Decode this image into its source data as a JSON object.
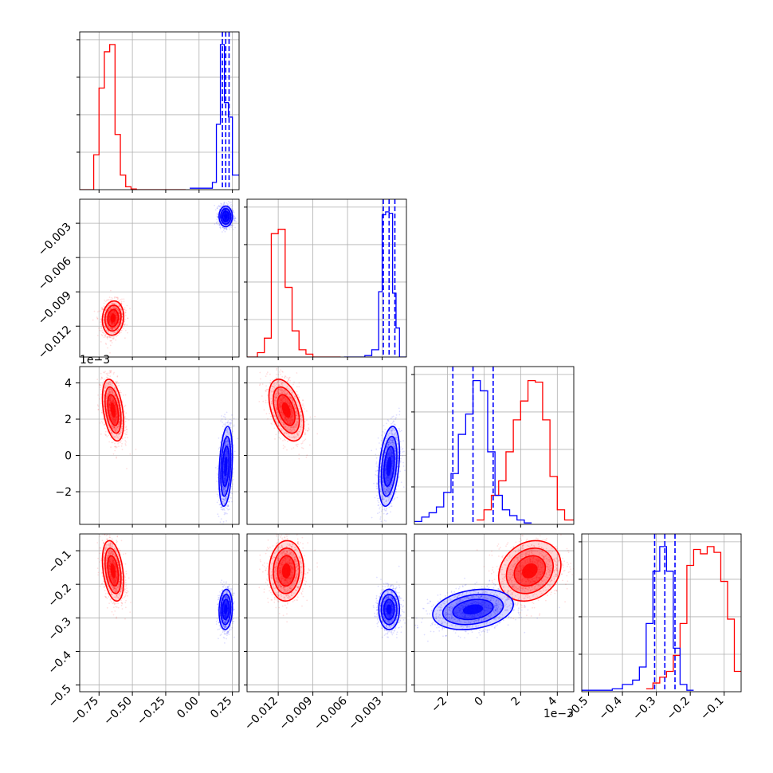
{
  "colors": {
    "red": "#ff0000",
    "blue": "#0000ff",
    "grid": "#b0b0b0",
    "axes": "#000000"
  },
  "chart_data": {
    "type": "corner-plot",
    "grid": true,
    "series": [
      {
        "color": "red",
        "params": {
          "p1": {
            "mean": -0.645,
            "std": 0.04
          },
          "p2": {
            "mean": -0.0113,
            "std": 0.00075
          },
          "p3": {
            "mean": 0.0025,
            "std": 0.00085
          },
          "p4": {
            "mean": -0.16,
            "std": 0.045
          }
        },
        "hist": {
          "p1": {
            "edges": [
              -0.895,
              -0.83,
              -0.79,
              -0.75,
              -0.71,
              -0.67,
              -0.63,
              -0.59,
              -0.55,
              -0.51,
              -0.47,
              -0.43,
              -0.39,
              -0.1
            ],
            "counts": [
              0,
              0,
              0.24,
              0.7,
              0.95,
              1.0,
              0.38,
              0.1,
              0.02,
              0.005,
              0,
              0,
              0
            ]
          },
          "p2": {
            "edges": [
              -0.0147,
              -0.0138,
              -0.0132,
              -0.0126,
              -0.012,
              -0.0114,
              -0.0108,
              -0.0102,
              -0.0096,
              -0.009,
              -0.0084,
              -0.0078,
              -0.0072,
              -0.0066
            ],
            "counts": [
              0,
              0.03,
              0.13,
              0.85,
              0.88,
              0.48,
              0.18,
              0.05,
              0.02,
              0,
              0,
              0,
              0
            ]
          },
          "p3": {
            "edges": [
              -0.0004,
              0.0,
              0.0004,
              0.0008,
              0.0012,
              0.0016,
              0.002,
              0.0024,
              0.0028,
              0.0032,
              0.0036,
              0.004,
              0.0044,
              0.005
            ],
            "counts": [
              0.03,
              0.1,
              0.2,
              0.3,
              0.5,
              0.72,
              0.85,
              0.99,
              0.98,
              0.72,
              0.33,
              0.1,
              0.03
            ]
          },
          "p4": {
            "edges": [
              -0.33,
              -0.31,
              -0.29,
              -0.27,
              -0.25,
              -0.23,
              -0.21,
              -0.19,
              -0.17,
              -0.15,
              -0.13,
              -0.11,
              -0.09,
              -0.07,
              -0.05
            ],
            "counts": [
              0.02,
              0.06,
              0.1,
              0.14,
              0.25,
              0.47,
              0.87,
              0.98,
              0.95,
              1.0,
              0.96,
              0.76,
              0.5,
              0.14
            ]
          }
        }
      },
      {
        "color": "blue",
        "params": {
          "p1": {
            "mean": 0.2,
            "std": 0.025
          },
          "p2": {
            "mean": -0.0024,
            "std": 0.00045
          },
          "p3": {
            "mean": -0.0006,
            "std": 0.0011
          },
          "p4": {
            "mean": -0.275,
            "std": 0.03
          }
        },
        "hist": {
          "p1": {
            "edges": [
              -0.07,
              0.1,
              0.13,
              0.16,
              0.19,
              0.22,
              0.25,
              0.28,
              0.3
            ],
            "counts": [
              0.01,
              0.05,
              0.45,
              1.0,
              0.6,
              0.5,
              0.1,
              0.1
            ]
          },
          "p2": {
            "edges": [
              -0.0063,
              -0.0045,
              -0.0039,
              -0.0033,
              -0.003,
              -0.0027,
              -0.0024,
              -0.0021,
              -0.0018,
              -0.0015,
              -0.0012,
              -0.0009
            ],
            "counts": [
              0,
              0.01,
              0.05,
              0.45,
              0.98,
              1.0,
              0.99,
              0.44,
              0.2,
              0,
              0
            ]
          },
          "p3": {
            "edges": [
              -0.0038,
              -0.0034,
              -0.003,
              -0.0026,
              -0.0022,
              -0.0018,
              -0.0014,
              -0.001,
              -0.0006,
              -0.0002,
              0.0002,
              0.0006,
              0.001,
              0.0014,
              0.0018,
              0.0022,
              0.0026
            ],
            "counts": [
              0.02,
              0.05,
              0.08,
              0.12,
              0.22,
              0.35,
              0.62,
              0.76,
              0.99,
              0.92,
              0.5,
              0.2,
              0.1,
              0.06,
              0.03,
              0.01
            ]
          },
          "p4": {
            "edges": [
              -0.52,
              -0.47,
              -0.43,
              -0.4,
              -0.37,
              -0.35,
              -0.33,
              -0.31,
              -0.29,
              -0.27,
              -0.25,
              -0.23,
              -0.21,
              -0.19
            ],
            "counts": [
              0.01,
              0.01,
              0.02,
              0.05,
              0.08,
              0.17,
              0.47,
              0.83,
              1.0,
              0.83,
              0.3,
              0.05,
              0.01
            ]
          },
          "quantile_lines": {
            "p1": [
              0.175,
              0.2,
              0.225
            ],
            "p2": [
              -0.0029,
              -0.0024,
              -0.0019
            ],
            "p3": [
              -0.0017,
              -0.0006,
              0.0005
            ],
            "p4": [
              -0.305,
              -0.275,
              -0.245
            ]
          }
        }
      }
    ],
    "axes": {
      "p1": {
        "range": [
          -0.895,
          0.3
        ],
        "ticks": [
          -0.75,
          -0.5,
          -0.25,
          0.0,
          0.25
        ],
        "tick_labels": [
          "−0.75",
          "−0.50",
          "−0.25",
          "0.00",
          "0.25"
        ]
      },
      "p2": {
        "range": [
          -0.0147,
          -0.0009
        ],
        "ticks": [
          -0.012,
          -0.009,
          -0.006,
          -0.003
        ],
        "tick_labels": [
          "−0.012",
          "−0.009",
          "−0.006",
          "−0.003"
        ]
      },
      "p3": {
        "range": [
          -0.0038,
          0.0049
        ],
        "ticks": [
          -0.002,
          0.0,
          0.002,
          0.004
        ],
        "tick_labels": [
          "−2",
          "0",
          "2",
          "4"
        ],
        "offset_label": "1e−3"
      },
      "p4": {
        "range": [
          -0.52,
          -0.05
        ],
        "ticks": [
          -0.5,
          -0.4,
          -0.3,
          -0.2,
          -0.1
        ],
        "tick_labels": [
          "−0.5",
          "−0.4",
          "−0.3",
          "−0.2",
          "−0.1"
        ]
      }
    },
    "panel_offset_labels": {
      "p3_y": "1e−3",
      "p3_x": "1e−3"
    }
  }
}
